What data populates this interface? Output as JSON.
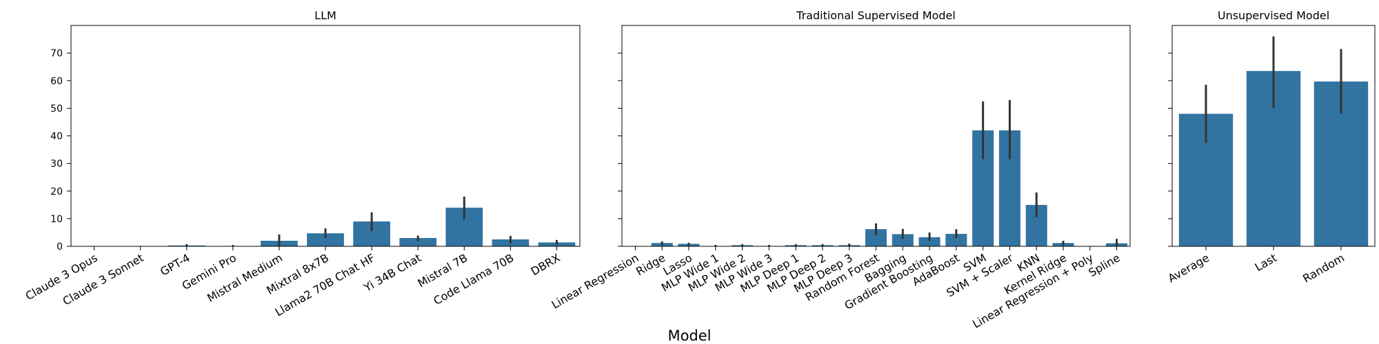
{
  "figure": {
    "xlabel": "Model"
  },
  "colors": {
    "bar": "#3274a1",
    "errorbar": "#333333",
    "axis": "#000000"
  },
  "chart_data": [
    {
      "type": "bar",
      "title": "LLM",
      "ylim": [
        0,
        80
      ],
      "yticks": [
        0,
        10,
        20,
        30,
        40,
        50,
        60,
        70
      ],
      "show_ytick_labels": true,
      "categories": [
        "Claude 3 Opus",
        "Claude 3 Sonnet",
        "GPT-4",
        "Gemini Pro",
        "Mistral Medium",
        "Mixtral 8x7B",
        "Llama2 70B Chat HF",
        "Yi 34B Chat",
        "Mistral 7B",
        "Code Llama 70B",
        "DBRX"
      ],
      "values": [
        0,
        0,
        0.3,
        0.1,
        2.0,
        4.7,
        9.0,
        3.0,
        14.0,
        2.5,
        1.4
      ],
      "error_low": [
        0,
        0,
        0,
        0,
        0,
        3.0,
        5.5,
        1.8,
        9.8,
        1.2,
        0.6
      ],
      "error_high": [
        0,
        0,
        0.8,
        0.5,
        4.3,
        6.5,
        12.3,
        3.9,
        18.0,
        3.8,
        2.3
      ]
    },
    {
      "type": "bar",
      "title": "Traditional Supervised Model",
      "ylim": [
        0,
        80
      ],
      "yticks": [
        0,
        10,
        20,
        30,
        40,
        50,
        60,
        70
      ],
      "show_ytick_labels": false,
      "categories": [
        "Linear Regression",
        "Ridge",
        "Lasso",
        "MLP Wide 1",
        "MLP Wide 2",
        "MLP Wide 3",
        "MLP Deep 1",
        "MLP Deep 2",
        "MLP Deep 3",
        "Random Forest",
        "Bagging",
        "Gradient Boosting",
        "AdaBoost",
        "SVM",
        "SVM + Scaler",
        "KNN",
        "Kernel Ridge",
        "Linear Regression + Poly",
        "Spline"
      ],
      "values": [
        0,
        1.2,
        0.9,
        0.1,
        0.4,
        0.1,
        0.4,
        0.4,
        0.4,
        6.2,
        4.4,
        3.3,
        4.5,
        42.0,
        42.0,
        15.0,
        1.2,
        0,
        1.1
      ],
      "error_low": [
        0,
        0.4,
        0.3,
        0,
        0,
        0,
        0,
        0,
        0,
        4.0,
        2.7,
        2.0,
        3.0,
        31.5,
        31.5,
        10.5,
        0.4,
        0,
        0
      ],
      "error_high": [
        0,
        1.8,
        1.3,
        0.5,
        0.8,
        0.5,
        0.8,
        0.8,
        1.0,
        8.3,
        6.3,
        5.0,
        6.2,
        52.5,
        53.0,
        19.5,
        2.0,
        0,
        2.7
      ]
    },
    {
      "type": "bar",
      "title": "Unsupervised Model",
      "ylim": [
        0,
        80
      ],
      "yticks": [
        0,
        10,
        20,
        30,
        40,
        50,
        60,
        70
      ],
      "show_ytick_labels": false,
      "categories": [
        "Average",
        "Last",
        "Random"
      ],
      "values": [
        48.0,
        63.5,
        59.7
      ],
      "error_low": [
        37.5,
        50.0,
        48.0
      ],
      "error_high": [
        58.5,
        76.0,
        71.5
      ]
    }
  ]
}
